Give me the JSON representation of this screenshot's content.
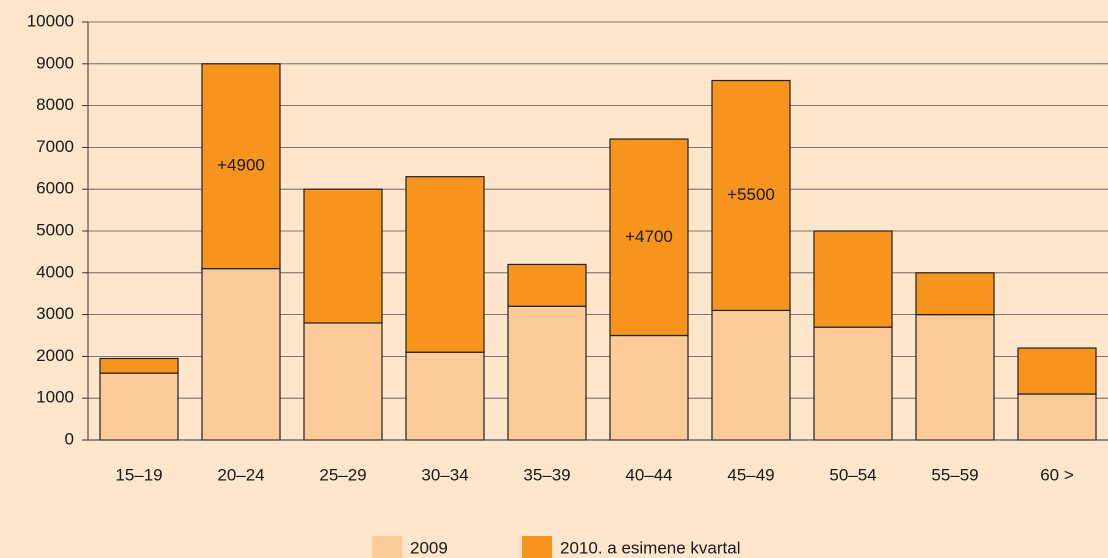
{
  "chart_data": {
    "type": "stacked_bar",
    "categories": [
      "15–19",
      "20–24",
      "25–29",
      "30–34",
      "35–39",
      "40–44",
      "45–49",
      "50–54",
      "55–59",
      "60 >"
    ],
    "series": [
      {
        "name": "2009",
        "color": "#fbcb9a",
        "values": [
          1600,
          4100,
          2800,
          2100,
          3200,
          2500,
          3100,
          2700,
          3000,
          1100
        ]
      },
      {
        "name": "2010. a esimene kvartal",
        "color": "#f7941d",
        "values": [
          350,
          4900,
          3200,
          4200,
          1000,
          4700,
          5500,
          2300,
          1000,
          1100
        ],
        "value_labels": [
          null,
          "+4900",
          null,
          null,
          null,
          "+4700",
          "+5500",
          null,
          null,
          null
        ]
      }
    ],
    "ylim": [
      0,
      10000
    ],
    "yticks": [
      0,
      1000,
      2000,
      3000,
      4000,
      5000,
      6000,
      7000,
      8000,
      9000,
      10000
    ],
    "grid": true,
    "legend": "bottom"
  }
}
